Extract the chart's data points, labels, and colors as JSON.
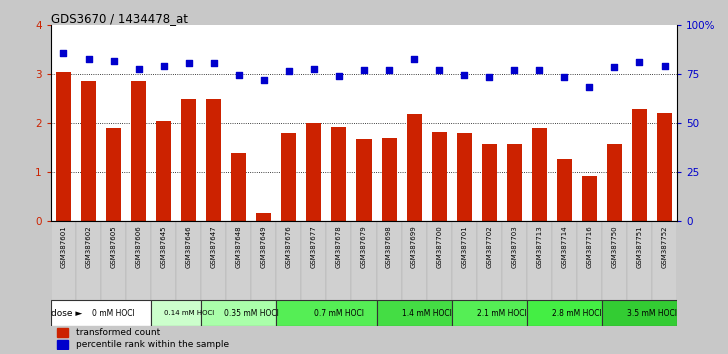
{
  "title": "GDS3670 / 1434478_at",
  "samples": [
    "GSM387601",
    "GSM387602",
    "GSM387605",
    "GSM387606",
    "GSM387645",
    "GSM387646",
    "GSM387647",
    "GSM387648",
    "GSM387649",
    "GSM387676",
    "GSM387677",
    "GSM387678",
    "GSM387679",
    "GSM387698",
    "GSM387699",
    "GSM387700",
    "GSM387701",
    "GSM387702",
    "GSM387703",
    "GSM387713",
    "GSM387714",
    "GSM387716",
    "GSM387750",
    "GSM387751",
    "GSM387752"
  ],
  "bar_values": [
    3.05,
    2.85,
    1.9,
    2.85,
    2.05,
    2.5,
    2.5,
    1.4,
    0.18,
    1.8,
    2.0,
    1.93,
    1.68,
    1.7,
    2.18,
    1.82,
    1.8,
    1.57,
    1.57,
    1.9,
    1.27,
    0.92,
    1.57,
    2.28,
    2.2
  ],
  "dot_values_pct": [
    85.5,
    82.5,
    81.8,
    77.5,
    79.3,
    80.5,
    80.5,
    74.3,
    72.0,
    76.3,
    77.5,
    73.8,
    77.0,
    76.8,
    82.5,
    77.0,
    74.5,
    73.3,
    77.0,
    77.0,
    73.3,
    68.5,
    78.3,
    81.3,
    79.3
  ],
  "bar_color": "#cc2200",
  "dot_color": "#0000cc",
  "dose_groups": [
    {
      "label": "0 mM HOCl",
      "start": 0,
      "end": 4,
      "color": "#ffffff"
    },
    {
      "label": "0.14 mM HOCl",
      "start": 4,
      "end": 6,
      "color": "#ccffcc"
    },
    {
      "label": "0.35 mM HOCl",
      "start": 6,
      "end": 9,
      "color": "#aaffaa"
    },
    {
      "label": "0.7 mM HOCl",
      "start": 9,
      "end": 13,
      "color": "#55ee55"
    },
    {
      "label": "1.4 mM HOCl",
      "start": 13,
      "end": 16,
      "color": "#44dd44"
    },
    {
      "label": "2.1 mM HOCl",
      "start": 16,
      "end": 19,
      "color": "#55ee55"
    },
    {
      "label": "2.8 mM HOCl",
      "start": 19,
      "end": 22,
      "color": "#44ee44"
    },
    {
      "label": "3.5 mM HOCl",
      "start": 22,
      "end": 25,
      "color": "#33cc33"
    }
  ],
  "legend_bar_label": "transformed count",
  "legend_dot_label": "percentile rank within the sample",
  "fig_bg": "#c8c8c8",
  "plot_bg": "#ffffff",
  "xtick_bg": "#d0d0d0"
}
